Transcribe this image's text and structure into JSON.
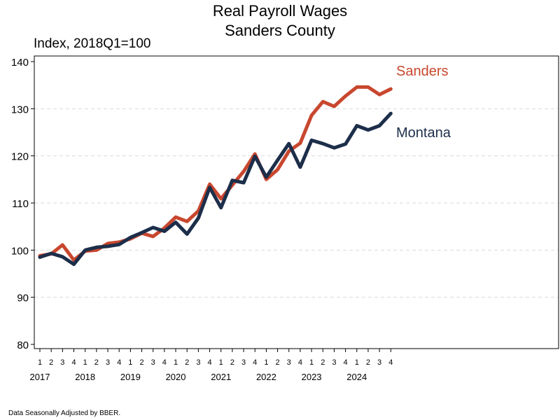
{
  "title": "Real Payroll Wages",
  "subtitle": "Sanders County",
  "footnote": "Data Seasonally Adjusted by BBER.",
  "chart_data": {
    "type": "line",
    "title": "Real Payroll Wages",
    "subtitle": "Sanders County",
    "ylabel": "Index, 2018Q1=100",
    "xlabel": "",
    "ylim": [
      80,
      140
    ],
    "yticks": [
      80,
      90,
      100,
      110,
      120,
      130,
      140
    ],
    "grid": "horizontal dashed",
    "legend": "inline labels at right end of lines",
    "quarters": [
      "1",
      "2",
      "3",
      "4",
      "1",
      "2",
      "3",
      "4",
      "1",
      "2",
      "3",
      "4",
      "1",
      "2",
      "3",
      "4",
      "1",
      "2",
      "3",
      "4",
      "1",
      "2",
      "3",
      "4",
      "1",
      "2",
      "3",
      "4",
      "1",
      "2",
      "3",
      "4"
    ],
    "years": [
      "2017",
      "2018",
      "2019",
      "2020",
      "2021",
      "2022",
      "2023",
      "2024"
    ],
    "series": [
      {
        "name": "Sanders",
        "color": "#c8472e",
        "values": [
          98.8,
          99.2,
          101.1,
          97.9,
          99.8,
          100.0,
          101.4,
          101.7,
          102.4,
          103.6,
          102.9,
          104.7,
          107.0,
          106.1,
          108.3,
          114.0,
          110.9,
          113.8,
          116.7,
          120.4,
          115.0,
          117.1,
          121.0,
          122.7,
          128.6,
          131.5,
          130.5,
          132.7,
          134.6,
          134.6,
          133.0,
          134.2
        ]
      },
      {
        "name": "Montana",
        "color": "#1c2e4a",
        "values": [
          98.5,
          99.3,
          98.6,
          97.0,
          100.0,
          100.6,
          100.8,
          101.2,
          102.7,
          103.7,
          104.8,
          104.0,
          105.9,
          103.4,
          106.8,
          113.3,
          109.0,
          114.8,
          114.3,
          119.9,
          115.5,
          119.1,
          122.6,
          117.6,
          123.3,
          122.6,
          121.7,
          122.5,
          126.4,
          125.5,
          126.4,
          129.0
        ]
      }
    ]
  }
}
